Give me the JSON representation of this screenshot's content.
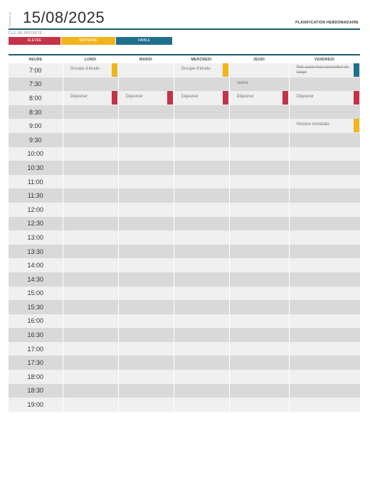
{
  "header": {
    "side_label": "Semaine du",
    "date": "15/08/2025",
    "title": "PLANIFICATION HEBDOMADAIRE"
  },
  "priority": {
    "label": "CLÉ DE PRIORITÉ :",
    "high": "ÉLEVÉE",
    "medium": "MOYENNE",
    "low": "FAIBLE"
  },
  "columns": [
    "HEURE",
    "LUNDI",
    "MARDI",
    "MERCREDI",
    "JEUDI",
    "VENDREDI"
  ],
  "times": [
    "7:00",
    "7:30",
    "8:00",
    "8:30",
    "9:00",
    "9:30",
    "10:00",
    "10:30",
    "11:00",
    "11:30",
    "12:00",
    "12:30",
    "13:00",
    "13:30",
    "14:00",
    "14:30",
    "15:00",
    "15:30",
    "16:00",
    "16:30",
    "17:00",
    "17:30",
    "18:00",
    "18:30",
    "19:00"
  ],
  "events": [
    {
      "row": 0,
      "col": 1,
      "text": "Groupe d'étude",
      "priority": "medium",
      "strike": false
    },
    {
      "row": 0,
      "col": 3,
      "text": "Groupe d'étude",
      "priority": "medium",
      "strike": false
    },
    {
      "row": 0,
      "col": 5,
      "text": "Rdv avec mon conseiller de stage",
      "priority": "low",
      "strike": true
    },
    {
      "row": 1,
      "col": 4,
      "text": "ravine",
      "priority": "",
      "strike": false
    },
    {
      "row": 2,
      "col": 1,
      "text": "Déjeuner",
      "priority": "high",
      "strike": false
    },
    {
      "row": 2,
      "col": 2,
      "text": "Déjeuner",
      "priority": "high",
      "strike": false
    },
    {
      "row": 2,
      "col": 3,
      "text": "Déjeuner",
      "priority": "high",
      "strike": false
    },
    {
      "row": 2,
      "col": 4,
      "text": "Déjeuner",
      "priority": "high",
      "strike": false
    },
    {
      "row": 2,
      "col": 5,
      "text": "Déjeuner",
      "priority": "high",
      "strike": false
    },
    {
      "row": 4,
      "col": 5,
      "text": "Histoire mondiale",
      "priority": "medium",
      "strike": false
    }
  ]
}
